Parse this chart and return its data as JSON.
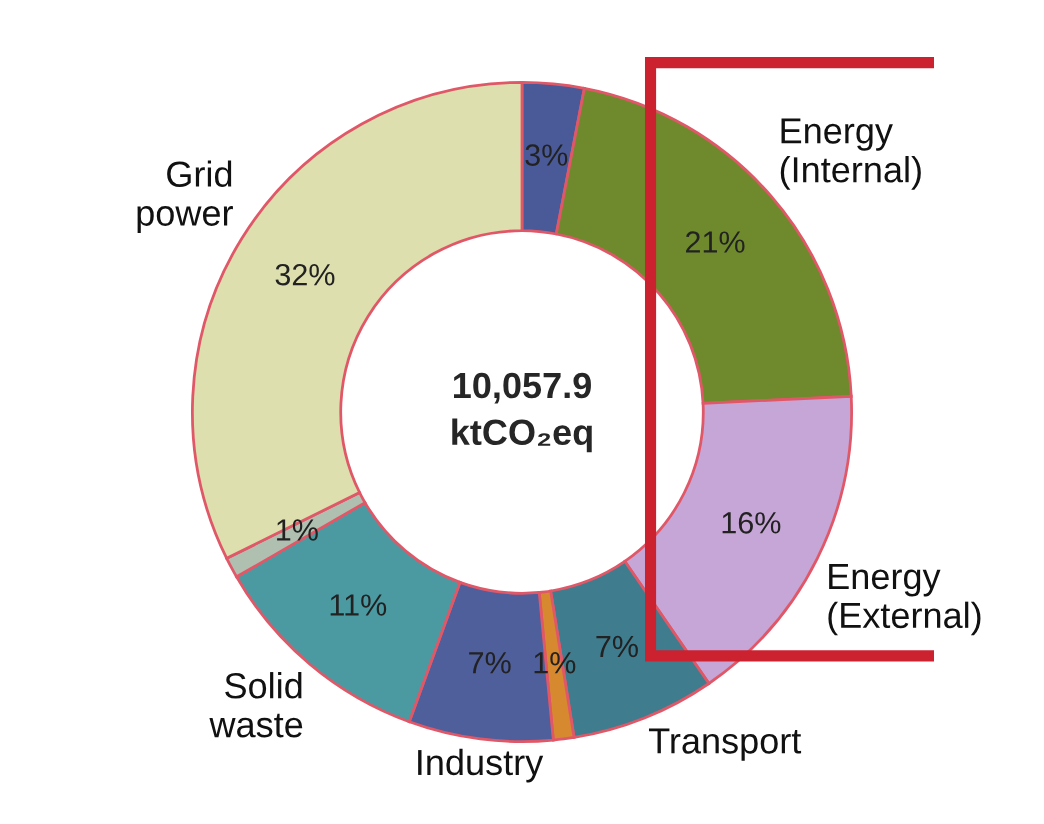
{
  "chart_data": {
    "type": "donut",
    "categories": [
      null,
      "Energy (Internal)",
      "Energy (External)",
      "Transport",
      null,
      "Industry",
      "Solid waste",
      null,
      "Grid power"
    ],
    "values": [
      3,
      21,
      16,
      7,
      1,
      7,
      11,
      1,
      32
    ],
    "colors": [
      "#4a5a98",
      "#6f8a2c",
      "#c6a6d6",
      "#3f7d8e",
      "#d6892e",
      "#4e5f9c",
      "#4b9aa2",
      "#b0c0b0",
      "#dedfae"
    ],
    "data_labels": true,
    "value_labels": [
      "3%",
      "21%",
      "16%",
      "7%",
      "1%",
      "7%",
      "11%",
      "1%",
      "32%"
    ],
    "annotations": [
      "10,057.9 ktCO₂eq"
    ]
  }
}
